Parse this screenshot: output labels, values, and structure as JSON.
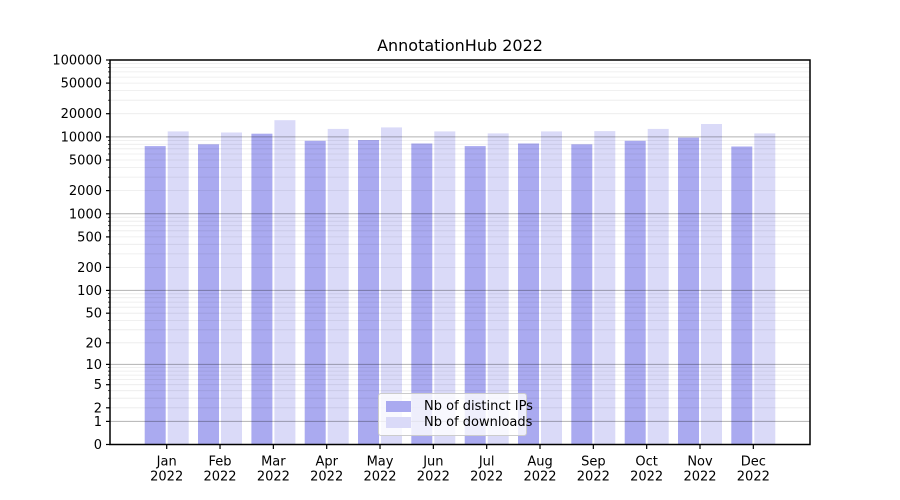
{
  "title": "AnnotationHub 2022",
  "legend": {
    "items": [
      {
        "label": "Nb of distinct IPs",
        "color": "#aaaaf0"
      },
      {
        "label": "Nb of downloads",
        "color": "#dadaf8"
      }
    ]
  },
  "colors": {
    "ips_bar": "#aaaaf0",
    "downloads_bar": "#dadaf8",
    "major_gridline": "rgba(0,0,0,0.30)",
    "minor_gridline": "rgba(0,0,0,0.08)",
    "spine": "#000000",
    "tick_text": "#000000"
  },
  "axes": {
    "y_tick_labels": [
      "100000",
      "50000",
      "20000",
      "10000",
      "5000",
      "2000",
      "1000",
      "500",
      "200",
      "100",
      "50",
      "20",
      "10",
      "5",
      "2",
      "1",
      "0"
    ],
    "x_tick_year": "2022",
    "x_tick_months": [
      "Jan",
      "Feb",
      "Mar",
      "Apr",
      "May",
      "Jun",
      "Jul",
      "Aug",
      "Sep",
      "Oct",
      "Nov",
      "Dec"
    ]
  },
  "chart_data": {
    "type": "bar",
    "title": "AnnotationHub 2022",
    "categories": [
      "Jan 2022",
      "Feb 2022",
      "Mar 2022",
      "Apr 2022",
      "May 2022",
      "Jun 2022",
      "Jul 2022",
      "Aug 2022",
      "Sep 2022",
      "Oct 2022",
      "Nov 2022",
      "Dec 2022"
    ],
    "series": [
      {
        "name": "Nb of distinct IPs",
        "values": [
          7600,
          8000,
          11000,
          8900,
          9100,
          8200,
          7600,
          8200,
          8000,
          8900,
          9800,
          7500
        ]
      },
      {
        "name": "Nb of downloads",
        "values": [
          11800,
          11400,
          16500,
          12700,
          13300,
          11800,
          11100,
          11800,
          11900,
          12700,
          14700,
          11100
        ]
      }
    ],
    "xlabel": "",
    "ylabel": "",
    "yscale": "log10(1+v)",
    "ylim": [
      0,
      100000
    ],
    "y_ticks": [
      0,
      1,
      2,
      5,
      10,
      20,
      50,
      100,
      200,
      500,
      1000,
      2000,
      5000,
      10000,
      20000,
      50000,
      100000
    ],
    "grid": true,
    "legend_position": "lower center"
  }
}
